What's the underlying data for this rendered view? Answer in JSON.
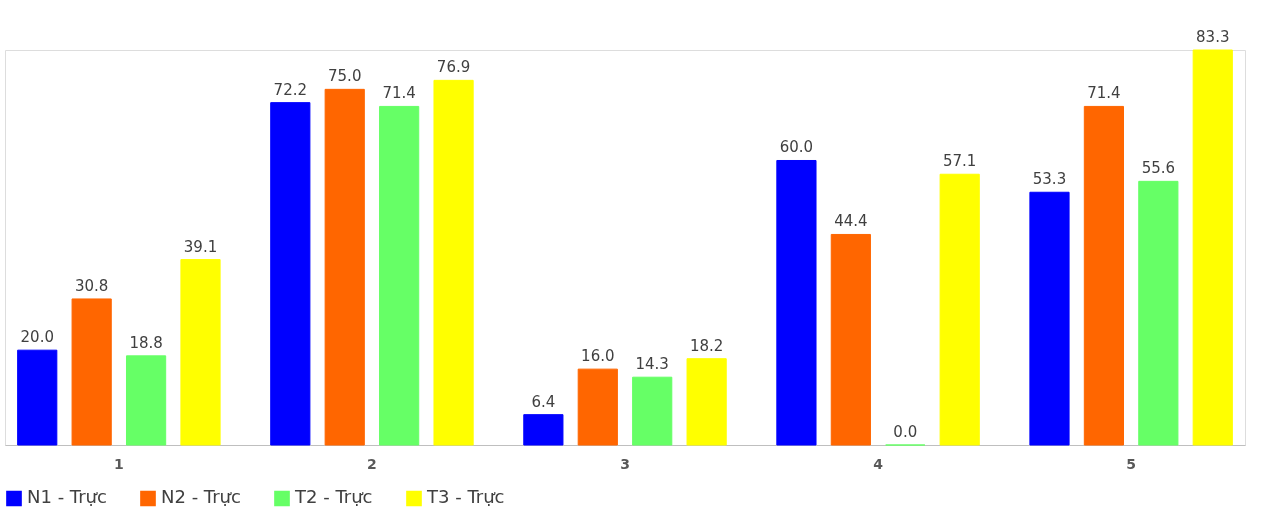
{
  "chart_data": {
    "type": "bar",
    "categories": [
      "1",
      "2",
      "3",
      "4",
      "5"
    ],
    "series": [
      {
        "name": "N1 - Trực",
        "color": "#0000ff",
        "values": [
          20.0,
          72.2,
          6.4,
          60.0,
          53.3
        ],
        "value_labels": [
          "20.0",
          "72.2",
          "6.4",
          "60.0",
          "53.3"
        ]
      },
      {
        "name": "N2 - Trực",
        "color": "#ff6600",
        "values": [
          30.8,
          75.0,
          16.0,
          44.4,
          71.4
        ],
        "value_labels": [
          "30.8",
          "75.0",
          "16.0",
          "44.4",
          "71.4"
        ]
      },
      {
        "name": "T2 - Trực",
        "color": "#66ff66",
        "values": [
          18.8,
          71.4,
          14.3,
          0.0,
          55.6
        ],
        "value_labels": [
          "18.8",
          "71.4",
          "14.3",
          "0.0",
          "55.6"
        ]
      },
      {
        "name": "T3 - Trực",
        "color": "#ffff00",
        "values": [
          39.1,
          76.9,
          18.2,
          57.1,
          83.3
        ],
        "value_labels": [
          "39.1",
          "76.9",
          "18.2",
          "57.1",
          "83.3"
        ]
      }
    ],
    "legend": "bottom",
    "grid": false
  }
}
